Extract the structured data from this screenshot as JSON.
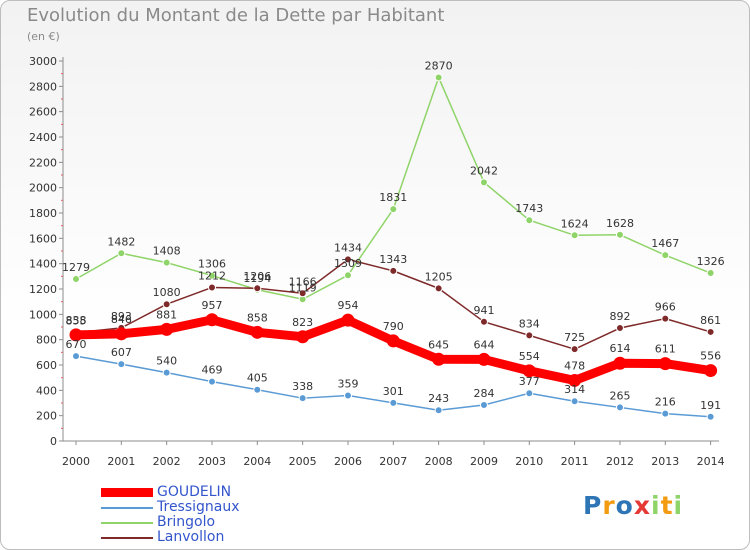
{
  "chart_data": {
    "type": "line",
    "title": "Evolution du Montant de la Dette par Habitant",
    "subtitle": "(en €)",
    "x": [
      2000,
      2001,
      2002,
      2003,
      2004,
      2005,
      2006,
      2007,
      2008,
      2009,
      2010,
      2011,
      2012,
      2013,
      2014
    ],
    "ylim": [
      0,
      3000
    ],
    "yticks": [
      0,
      200,
      400,
      600,
      800,
      1000,
      1200,
      1400,
      1600,
      1800,
      2000,
      2200,
      2400,
      2600,
      2800,
      3000
    ],
    "grid": false,
    "legend_position": "bottom-left",
    "series": [
      {
        "name": "GOUDELIN",
        "color": "#ff0000",
        "values": [
          838,
          846,
          881,
          957,
          858,
          823,
          954,
          790,
          645,
          644,
          554,
          478,
          614,
          611,
          556
        ]
      },
      {
        "name": "Tressignaux",
        "color": "#5b9bd5",
        "values": [
          670,
          607,
          540,
          469,
          405,
          338,
          359,
          301,
          243,
          284,
          377,
          314,
          265,
          216,
          191
        ]
      },
      {
        "name": "Bringolo",
        "color": "#8fd468",
        "values": [
          1279,
          1482,
          1408,
          1306,
          1194,
          1119,
          1309,
          1831,
          2870,
          2042,
          1743,
          1624,
          1628,
          1467,
          1326
        ]
      },
      {
        "name": "Lanvollon",
        "color": "#7f2a2a",
        "values": [
          855,
          893,
          1080,
          1212,
          1206,
          1166,
          1434,
          1343,
          1205,
          941,
          834,
          725,
          892,
          966,
          861
        ]
      }
    ]
  },
  "legend": [
    {
      "name": "GOUDELIN",
      "color": "#ff0000"
    },
    {
      "name": "Tressignaux",
      "color": "#5b9bd5"
    },
    {
      "name": "Bringolo",
      "color": "#8fd468"
    },
    {
      "name": "Lanvollon",
      "color": "#7f2a2a"
    }
  ],
  "logo": {
    "letters": [
      "P",
      "r",
      "o",
      "x",
      "i",
      "t",
      "i"
    ]
  }
}
